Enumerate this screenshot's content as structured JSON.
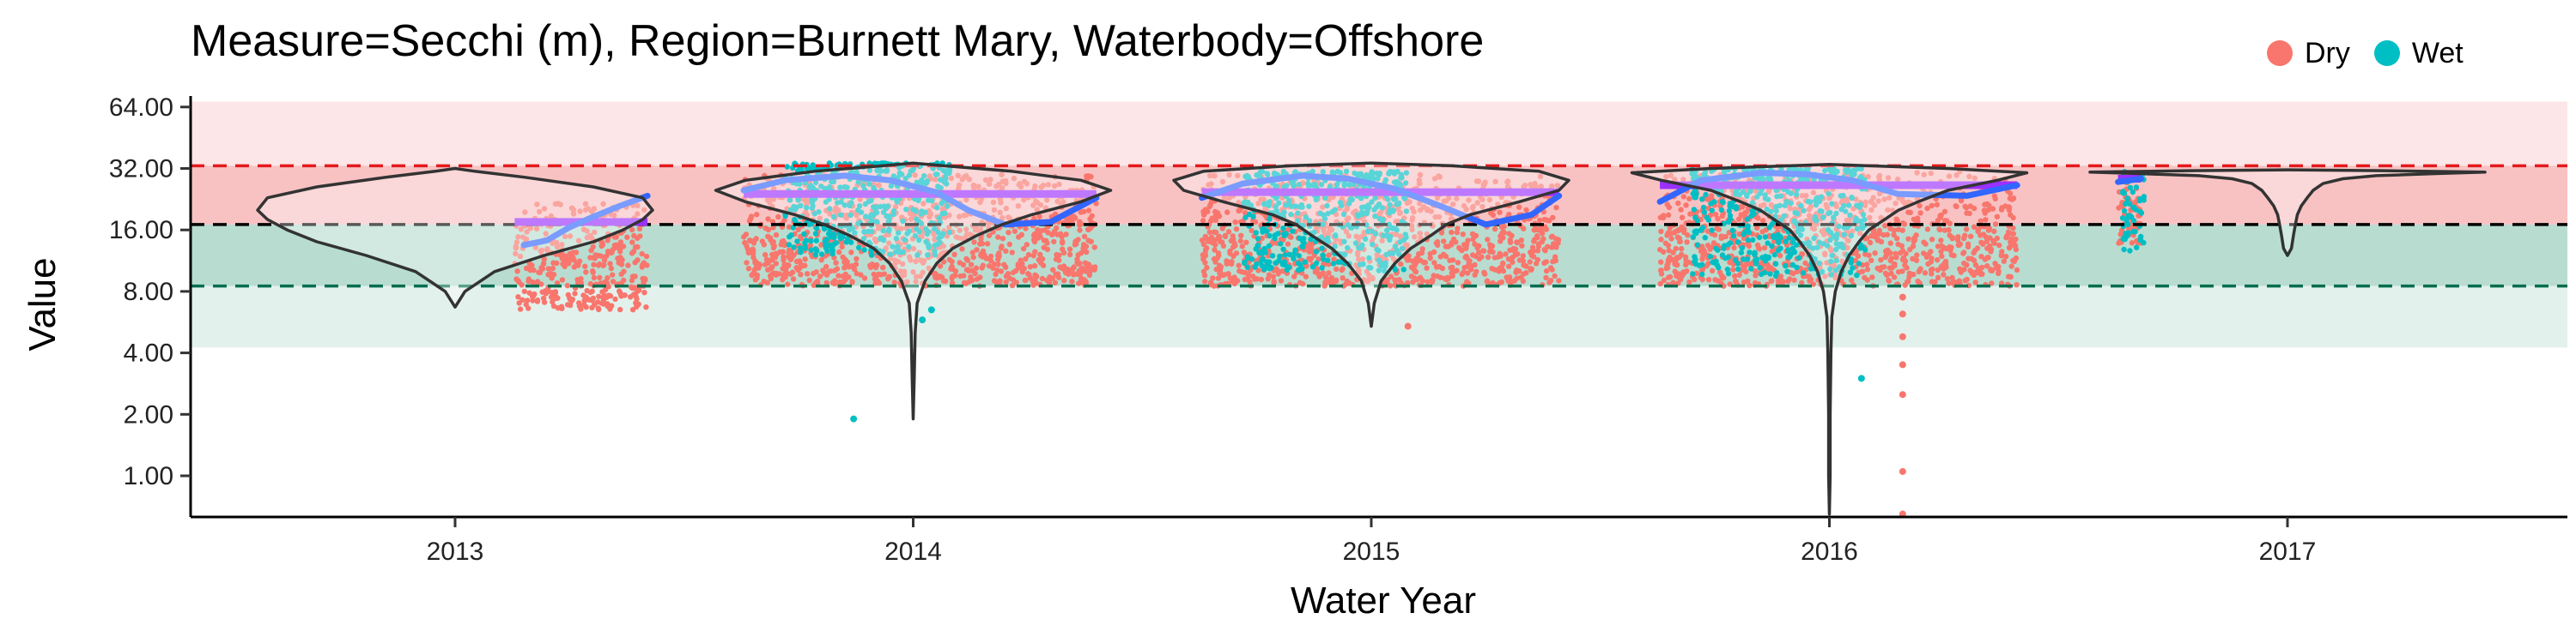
{
  "chart_data": {
    "type": "scatter",
    "title": "Measure=Secchi (m), Region=Burnett Mary, Waterbody=Offshore",
    "xlabel": "Water Year",
    "ylabel": "Value",
    "y_scale": "log2",
    "ylim": [
      0.58,
      68
    ],
    "xlim": [
      2012.45,
      2017.58
    ],
    "y_ticks": [
      1,
      2,
      4,
      8,
      16,
      32,
      64
    ],
    "y_tick_labels": [
      "1.00",
      "2.00",
      "4.00",
      "8.00",
      "16.00",
      "32.00",
      "64.00"
    ],
    "x_ticks": [
      2013,
      2014,
      2015,
      2016,
      2017
    ],
    "x_tick_labels": [
      "2013",
      "2014",
      "2015",
      "2016",
      "2017"
    ],
    "legend": {
      "placement": "top-right",
      "entries": [
        {
          "label": "Dry",
          "color": "#F8766D"
        },
        {
          "label": "Wet",
          "color": "#00BFC4"
        }
      ]
    },
    "bands": [
      {
        "from": 33,
        "to": 68,
        "color": "#fde6e7"
      },
      {
        "from": 17,
        "to": 33,
        "color": "#f8c2c3"
      },
      {
        "from": 8.5,
        "to": 17,
        "color": "#b8ddd0"
      },
      {
        "from": 4.25,
        "to": 8.5,
        "color": "#e3f1ec"
      }
    ],
    "reference_lines": [
      {
        "y": 33,
        "color": "#e31a1c",
        "style": "dashed"
      },
      {
        "y": 17,
        "color": "#000000",
        "style": "dashed"
      },
      {
        "y": 8.5,
        "color": "#006d4f",
        "style": "dashed"
      }
    ],
    "colors": {
      "dry": "#F8766D",
      "wet": "#00BFC4",
      "smooth": "#3366ff",
      "median": "#9b30ff",
      "violin": "#333333"
    },
    "clusters": [
      {
        "year": 2013,
        "x_start": 2013.13,
        "x_end": 2013.42,
        "dry_range": [
          6.5,
          22
        ],
        "wet_range": null,
        "wet_span": null,
        "median": 17.5,
        "smooth": [
          [
            2013.15,
            13.5
          ],
          [
            2013.2,
            14.2
          ],
          [
            2013.25,
            16.5
          ],
          [
            2013.3,
            18.5
          ],
          [
            2013.36,
            21
          ],
          [
            2013.42,
            23.5
          ]
        ]
      },
      {
        "year": 2014,
        "x_start": 2013.63,
        "x_end": 2014.4,
        "dry_range": [
          8.5,
          30
        ],
        "wet_range": [
          12,
          34
        ],
        "wet_span": [
          2013.72,
          2014.08
        ],
        "median": 24,
        "smooth": [
          [
            2013.63,
            25
          ],
          [
            2013.72,
            28
          ],
          [
            2013.85,
            29.5
          ],
          [
            2013.95,
            28
          ],
          [
            2014.05,
            24.5
          ],
          [
            2014.12,
            20
          ],
          [
            2014.2,
            17
          ],
          [
            2014.3,
            17.5
          ],
          [
            2014.4,
            23
          ]
        ]
      },
      {
        "year": 2015,
        "x_start": 2014.63,
        "x_end": 2015.41,
        "dry_range": [
          8.5,
          30
        ],
        "wet_range": [
          10,
          31
        ],
        "wet_span": [
          2014.72,
          2015.08
        ],
        "median": 24.5,
        "smooth": [
          [
            2014.63,
            23
          ],
          [
            2014.72,
            27
          ],
          [
            2014.85,
            29.5
          ],
          [
            2014.95,
            28.5
          ],
          [
            2015.05,
            25.5
          ],
          [
            2015.15,
            21
          ],
          [
            2015.25,
            17
          ],
          [
            2015.35,
            19
          ],
          [
            2015.41,
            23.5
          ]
        ]
      },
      {
        "year": 2016,
        "x_start": 2015.63,
        "x_end": 2016.41,
        "dry_range": [
          8.5,
          31
        ],
        "wet_range": [
          9.5,
          32
        ],
        "wet_span": [
          2015.7,
          2016.08
        ],
        "median": 26.5,
        "smooth": [
          [
            2015.63,
            22
          ],
          [
            2015.72,
            28
          ],
          [
            2015.85,
            30.5
          ],
          [
            2015.95,
            30
          ],
          [
            2016.05,
            28
          ],
          [
            2016.15,
            24
          ],
          [
            2016.3,
            23.5
          ],
          [
            2016.41,
            26.5
          ]
        ]
      },
      {
        "year": 2017,
        "x_start": 2016.63,
        "x_end": 2016.68,
        "dry_range": [
          13,
          30
        ],
        "wet_range": [
          12,
          31
        ],
        "wet_span": [
          2016.64,
          2016.69
        ],
        "median": 28.5,
        "smooth": [
          [
            2016.63,
            27.5
          ],
          [
            2016.68,
            28.5
          ]
        ]
      }
    ],
    "outliers": [
      {
        "x": 2013.87,
        "y": 1.9,
        "group": "Wet"
      },
      {
        "x": 2014.02,
        "y": 5.8,
        "group": "Wet"
      },
      {
        "x": 2014.04,
        "y": 6.5,
        "group": "Wet"
      },
      {
        "x": 2015.08,
        "y": 5.4,
        "group": "Dry"
      },
      {
        "x": 2016.07,
        "y": 3.0,
        "group": "Wet"
      },
      {
        "x": 2016.16,
        "y": 0.65,
        "group": "Dry"
      },
      {
        "x": 2016.16,
        "y": 1.05,
        "group": "Dry"
      },
      {
        "x": 2016.16,
        "y": 2.5,
        "group": "Dry"
      },
      {
        "x": 2016.16,
        "y": 3.5,
        "group": "Dry"
      },
      {
        "x": 2016.16,
        "y": 4.8,
        "group": "Dry"
      },
      {
        "x": 2016.16,
        "y": 6.2,
        "group": "Dry"
      },
      {
        "x": 2016.16,
        "y": 7.5,
        "group": "Dry"
      }
    ],
    "violins": [
      {
        "x": 2013,
        "y_min": 6.7,
        "y_max": 32,
        "density": [
          [
            6.7,
            0
          ],
          [
            8,
            0.05
          ],
          [
            10,
            0.2
          ],
          [
            12,
            0.45
          ],
          [
            14,
            0.7
          ],
          [
            16,
            0.85
          ],
          [
            18,
            0.95
          ],
          [
            20,
            1.0
          ],
          [
            23,
            0.95
          ],
          [
            26,
            0.7
          ],
          [
            29,
            0.35
          ],
          [
            31,
            0.1
          ],
          [
            32,
            0
          ]
        ]
      },
      {
        "x": 2014,
        "y_min": 1.9,
        "y_max": 34,
        "density": [
          [
            1.9,
            0
          ],
          [
            3,
            0.005
          ],
          [
            5,
            0.01
          ],
          [
            7,
            0.02
          ],
          [
            9,
            0.06
          ],
          [
            11,
            0.12
          ],
          [
            13,
            0.2
          ],
          [
            15,
            0.32
          ],
          [
            17,
            0.45
          ],
          [
            19,
            0.6
          ],
          [
            22,
            0.85
          ],
          [
            25,
            1.0
          ],
          [
            28,
            0.85
          ],
          [
            31,
            0.5
          ],
          [
            33,
            0.15
          ],
          [
            34,
            0
          ]
        ]
      },
      {
        "x": 2015,
        "y_min": 5.4,
        "y_max": 34,
        "density": [
          [
            5.4,
            0
          ],
          [
            7,
            0.015
          ],
          [
            9,
            0.05
          ],
          [
            11,
            0.12
          ],
          [
            13,
            0.2
          ],
          [
            15,
            0.3
          ],
          [
            17,
            0.38
          ],
          [
            19,
            0.5
          ],
          [
            22,
            0.75
          ],
          [
            25,
            0.95
          ],
          [
            28,
            1.0
          ],
          [
            31,
            0.85
          ],
          [
            33,
            0.4
          ],
          [
            34,
            0
          ]
        ]
      },
      {
        "x": 2016,
        "y_min": 0.65,
        "y_max": 33.5,
        "density": [
          [
            0.65,
            0
          ],
          [
            1,
            0.004
          ],
          [
            2,
            0.004
          ],
          [
            4,
            0.008
          ],
          [
            6,
            0.012
          ],
          [
            8,
            0.03
          ],
          [
            10,
            0.06
          ],
          [
            12,
            0.1
          ],
          [
            14,
            0.15
          ],
          [
            16,
            0.2
          ],
          [
            18,
            0.28
          ],
          [
            20,
            0.35
          ],
          [
            22,
            0.45
          ],
          [
            25,
            0.6
          ],
          [
            28,
            0.85
          ],
          [
            30.5,
            1.0
          ],
          [
            32,
            0.6
          ],
          [
            33.5,
            0
          ]
        ]
      },
      {
        "x": 2017,
        "y_min": 12,
        "y_max": 31.5,
        "density": [
          [
            12,
            0
          ],
          [
            13,
            0.02
          ],
          [
            15,
            0.03
          ],
          [
            17,
            0.04
          ],
          [
            19,
            0.05
          ],
          [
            21,
            0.07
          ],
          [
            23,
            0.1
          ],
          [
            25,
            0.13
          ],
          [
            27,
            0.18
          ],
          [
            28.5,
            0.28
          ],
          [
            29.5,
            0.45
          ],
          [
            30.2,
            0.75
          ],
          [
            30.7,
            1.0
          ],
          [
            31.2,
            0.5
          ],
          [
            31.5,
            0
          ]
        ]
      }
    ]
  }
}
